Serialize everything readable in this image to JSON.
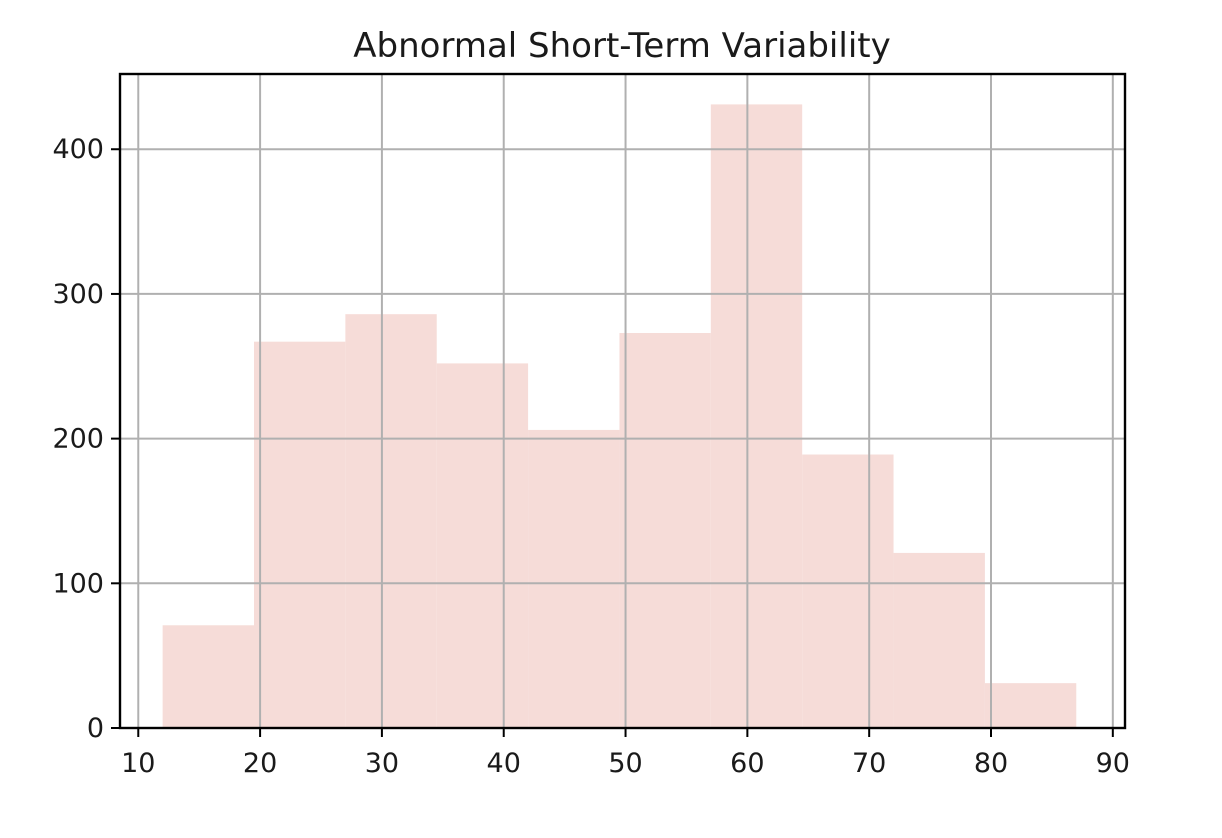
{
  "chart_data": {
    "type": "bar",
    "title": "Abnormal Short-Term Variability",
    "xlabel": "",
    "ylabel": "",
    "xlim": [
      8.5,
      91
    ],
    "ylim": [
      0,
      452
    ],
    "xticks": [
      10,
      20,
      30,
      40,
      50,
      60,
      70,
      80,
      90
    ],
    "yticks": [
      0,
      100,
      200,
      300,
      400
    ],
    "bins": [
      {
        "x0": 12.0,
        "x1": 19.5,
        "count": 71
      },
      {
        "x0": 19.5,
        "x1": 27.0,
        "count": 267
      },
      {
        "x0": 27.0,
        "x1": 34.5,
        "count": 286
      },
      {
        "x0": 34.5,
        "x1": 42.0,
        "count": 252
      },
      {
        "x0": 42.0,
        "x1": 49.5,
        "count": 206
      },
      {
        "x0": 49.5,
        "x1": 57.0,
        "count": 273
      },
      {
        "x0": 57.0,
        "x1": 64.5,
        "count": 431
      },
      {
        "x0": 64.5,
        "x1": 72.0,
        "count": 189
      },
      {
        "x0": 72.0,
        "x1": 79.5,
        "count": 121
      },
      {
        "x0": 79.5,
        "x1": 87.0,
        "count": 31
      }
    ],
    "bar_color": "#f6dcd8",
    "grid": true,
    "legend": false
  }
}
